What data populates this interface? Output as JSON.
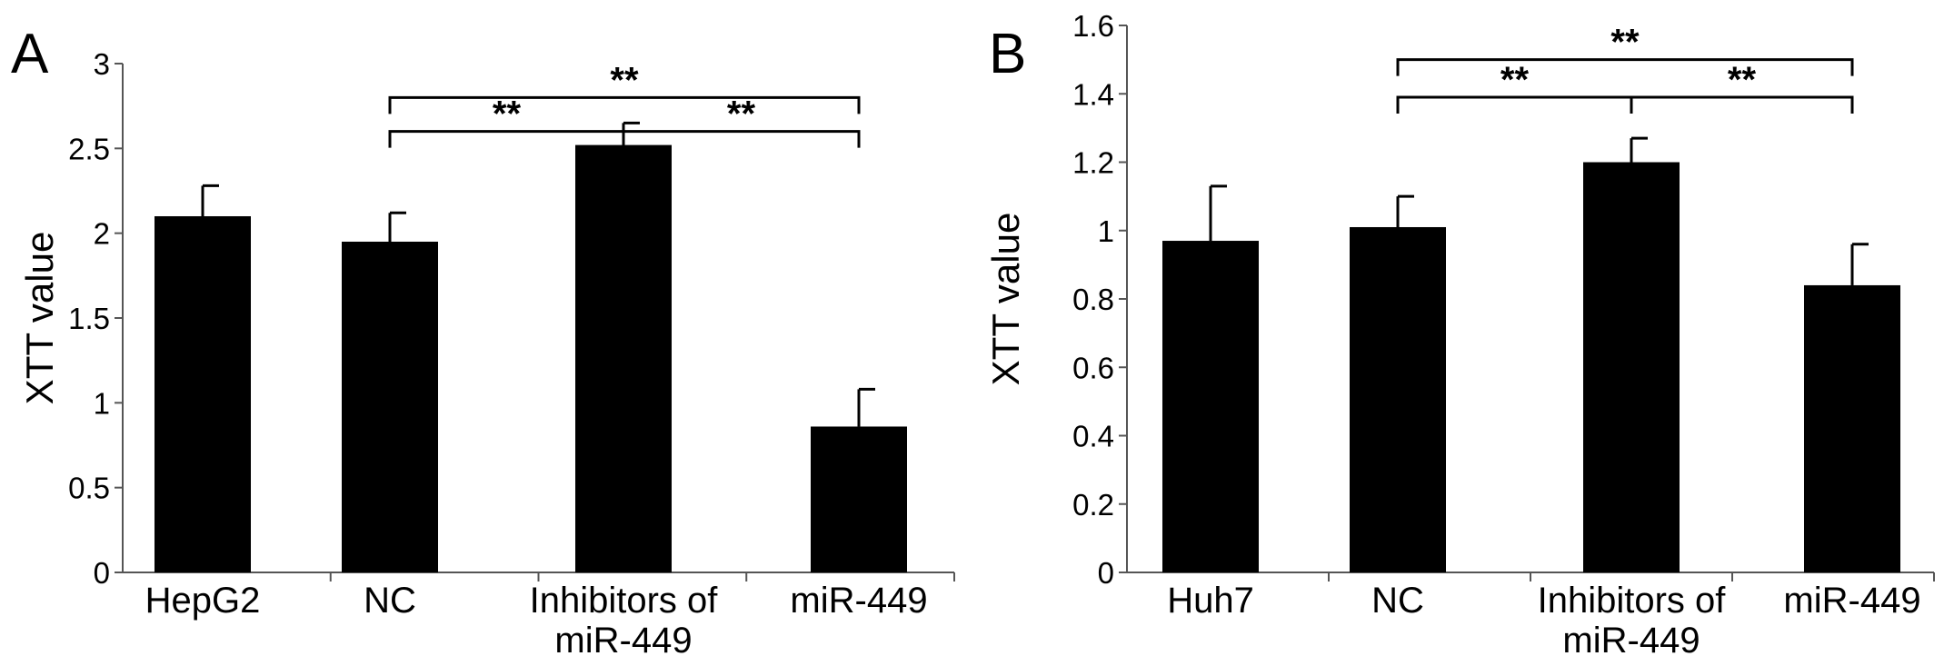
{
  "chart_data": [
    {
      "type": "bar",
      "panel_label": "A",
      "categories": [
        "HepG2",
        "NC",
        "Inhibitors of\nmiR-449",
        "miR-449"
      ],
      "values": [
        2.1,
        1.95,
        2.52,
        0.86
      ],
      "error_bars": [
        0.18,
        0.17,
        0.13,
        0.22
      ],
      "ylabel": "XTT value",
      "ylim": [
        0,
        3
      ],
      "yticks": [
        0,
        0.5,
        1,
        1.5,
        2,
        2.5,
        3
      ],
      "ytick_labels": [
        "0",
        "0.5",
        "1",
        "1.5",
        "2",
        "2.5",
        "3"
      ],
      "bar_color": "#000000",
      "grid": false,
      "significance": [
        {
          "from": 1,
          "to": 3,
          "label": "**",
          "level": 2.8
        },
        {
          "from": 1,
          "to": 2,
          "label": "**",
          "level": 2.6
        },
        {
          "from": 2,
          "to": 3,
          "label": "**",
          "level": 2.6
        }
      ]
    },
    {
      "type": "bar",
      "panel_label": "B",
      "categories": [
        "Huh7",
        "NC",
        "Inhibitors of\nmiR-449",
        "miR-449"
      ],
      "values": [
        0.97,
        1.01,
        1.2,
        0.84
      ],
      "error_bars": [
        0.16,
        0.09,
        0.07,
        0.12
      ],
      "ylabel": "XTT value",
      "ylim": [
        0,
        1.6
      ],
      "yticks": [
        0,
        0.2,
        0.4,
        0.6,
        0.8,
        1,
        1.2,
        1.4,
        1.6
      ],
      "ytick_labels": [
        "0",
        "0.2",
        "0.4",
        "0.6",
        "0.8",
        "1",
        "1.2",
        "1.4",
        "1.6"
      ],
      "bar_color": "#000000",
      "grid": false,
      "significance": [
        {
          "from": 1,
          "to": 3,
          "label": "**",
          "level": 1.5
        },
        {
          "from": 1,
          "to": 2,
          "label": "**",
          "level": 1.39
        },
        {
          "from": 2,
          "to": 3,
          "label": "**",
          "level": 1.39
        }
      ]
    }
  ]
}
